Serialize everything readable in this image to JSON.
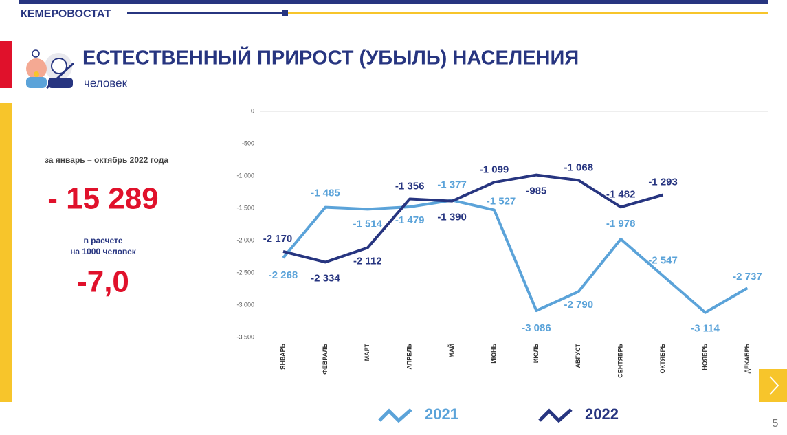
{
  "header": {
    "brand": "КЕМЕРОВОСТАТ",
    "title": "ЕСТЕСТВЕННЫЙ ПРИРОСТ (УБЫЛЬ) НАСЕЛЕНИЯ",
    "subtitle": "человек",
    "page_number": "5"
  },
  "summary": {
    "period": "за январь – октябрь 2022 года",
    "total": "- 15 289",
    "rate_caption_line1": "в расчете",
    "rate_caption_line2": "на 1000 человек",
    "rate": "-7,0"
  },
  "chart_data": {
    "type": "line",
    "categories": [
      "ЯНВАРЬ",
      "ФЕВРАЛЬ",
      "МАРТ",
      "АПРЕЛЬ",
      "МАЙ",
      "ИЮНЬ",
      "ИЮЛЬ",
      "АВГУСТ",
      "СЕНТЯБРЬ",
      "ОКТЯБРЬ",
      "НОЯБРЬ",
      "ДЕКАБРЬ"
    ],
    "series": [
      {
        "name": "2021",
        "color": "#5ba3d9",
        "values": [
          -2268,
          -1485,
          -1514,
          -1479,
          -1377,
          -1527,
          -3086,
          -2790,
          -1978,
          -2547,
          -3114,
          -2737
        ],
        "value_labels": [
          "-2 268",
          "-1 485",
          "-1 514",
          "-1 479",
          "-1 377",
          "-1 527",
          "-3 086",
          "-2 790",
          "-1 978",
          "-2 547",
          "-3 114",
          "-2 737"
        ]
      },
      {
        "name": "2022",
        "color": "#273580",
        "values": [
          -2170,
          -2334,
          -2112,
          -1356,
          -1390,
          -1099,
          -985,
          -1068,
          -1482,
          -1293,
          null,
          null
        ],
        "value_labels": [
          "-2 170",
          "-2 334",
          "-2 112",
          "-1 356",
          "-1 390",
          "-1 099",
          "-985",
          "-1 068",
          "-1 482",
          "-1 293",
          null,
          null
        ]
      }
    ],
    "ylim": [
      -3500,
      0
    ],
    "yticks": [
      0,
      -500,
      {
        "value": -1000,
        "label": "-1 000"
      },
      {
        "value": -1500,
        "label": "-1 500"
      },
      {
        "value": -2000,
        "label": "-2 000"
      },
      {
        "value": -2500,
        "label": "-2 500"
      },
      {
        "value": -3000,
        "label": "-3 000"
      },
      {
        "value": -3500,
        "label": "-3 500"
      }
    ],
    "grid": false
  }
}
